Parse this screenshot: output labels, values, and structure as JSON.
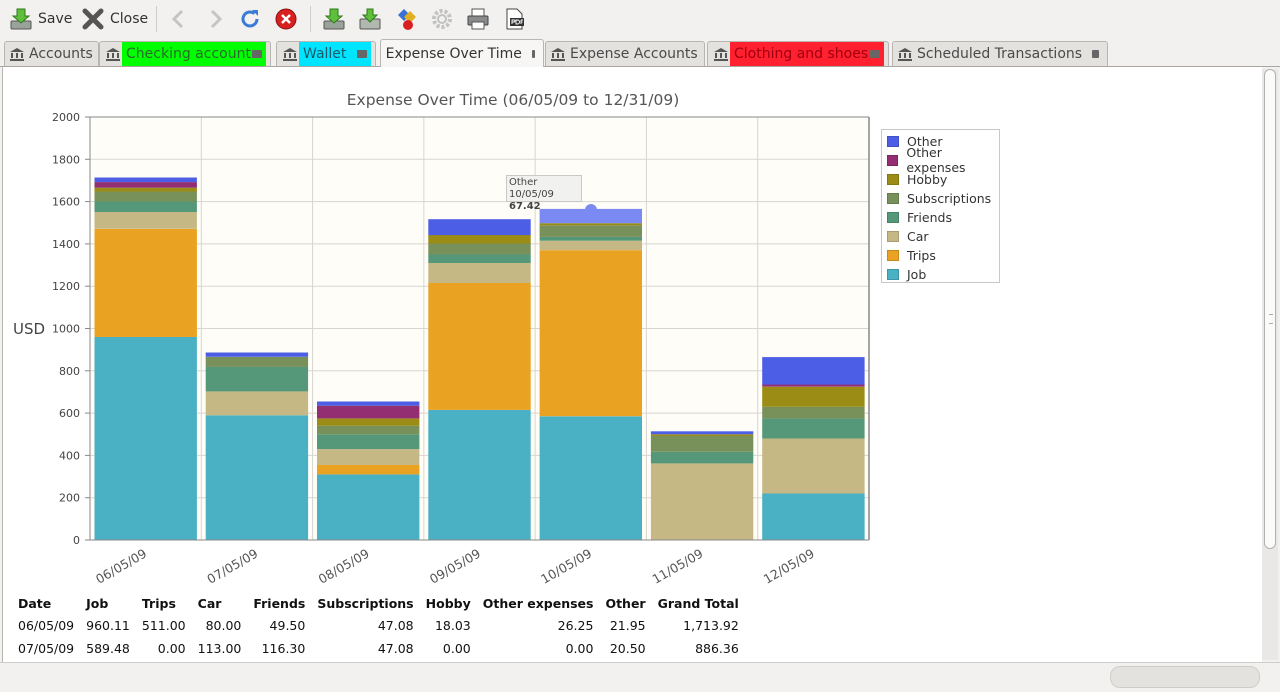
{
  "toolbar": {
    "save_label": "Save",
    "close_label": "Close",
    "icons": [
      "save-icon",
      "close-icon",
      "back-arrow-icon",
      "forward-arrow-icon",
      "refresh-icon",
      "stop-icon",
      "download-icon",
      "import-icon",
      "stock-quote-icon",
      "gear-icon",
      "print-icon",
      "pdf-icon"
    ]
  },
  "tabs": [
    {
      "label": "Accounts",
      "bg": "#e4e2df",
      "color": "#4a4a4a"
    },
    {
      "label": "Checking account",
      "bg": "#00ff00",
      "color": "#2a6a2a"
    },
    {
      "label": "Wallet",
      "bg": "#00e5ff",
      "color": "#1a5a6a"
    },
    {
      "label": "Expense Over Time",
      "bg": "#f7f6f5",
      "color": "#333333"
    },
    {
      "label": "Expense Accounts",
      "bg": "#e4e2df",
      "color": "#4a4a4a"
    },
    {
      "label": "Clothing and shoes",
      "bg": "#ff2030",
      "color": "#a00010"
    },
    {
      "label": "Scheduled Transactions",
      "bg": "#e4e2df",
      "color": "#4a4a4a"
    }
  ],
  "chart_data": {
    "type": "bar",
    "stacked": true,
    "title": "Expense Over Time (06/05/09 to 12/31/09)",
    "ylabel": "USD",
    "xlabel": "",
    "ylim": [
      0,
      2000
    ],
    "yticks": [
      0,
      200,
      400,
      600,
      800,
      1000,
      1200,
      1400,
      1600,
      1800,
      2000
    ],
    "grid": true,
    "legend": "right",
    "categories": [
      "06/05/09",
      "07/05/09",
      "08/05/09",
      "09/05/09",
      "10/05/09",
      "11/05/09",
      "12/05/09"
    ],
    "series": [
      {
        "name": "Job",
        "color": "#4ab0c4",
        "values": [
          960.11,
          589.48,
          310,
          615,
          585,
          0,
          220
        ]
      },
      {
        "name": "Trips",
        "color": "#eaa222",
        "values": [
          511.0,
          0.0,
          45,
          600,
          785,
          0,
          0
        ]
      },
      {
        "name": "Car",
        "color": "#c6b884",
        "values": [
          80.0,
          113.0,
          75,
          95,
          45,
          362,
          260
        ]
      },
      {
        "name": "Friends",
        "color": "#549879",
        "values": [
          49.5,
          116.3,
          70,
          40,
          18,
          55,
          95
        ]
      },
      {
        "name": "Subscriptions",
        "color": "#78905a",
        "values": [
          47.08,
          47.08,
          40,
          52,
          55,
          75,
          55
        ]
      },
      {
        "name": "Hobby",
        "color": "#9a8c14",
        "values": [
          18.03,
          0.0,
          35,
          40,
          10,
          8,
          95
        ]
      },
      {
        "name": "Other expenses",
        "color": "#932e73",
        "values": [
          26.25,
          0.0,
          60,
          0,
          0,
          0,
          10
        ]
      },
      {
        "name": "Other",
        "color": "#4d5ee6",
        "values": [
          21.95,
          20.5,
          20,
          75,
          67.42,
          14,
          130
        ]
      }
    ],
    "highlight": {
      "series": "Other",
      "category": "10/05/09",
      "color": "#7a8af2"
    }
  },
  "tooltip": {
    "line1": "Other 10/05/09",
    "line2": "67.42"
  },
  "table": {
    "headers": [
      "Date",
      "Job",
      "Trips",
      "Car",
      "Friends",
      "Subscriptions",
      "Hobby",
      "Other expenses",
      "Other",
      "Grand Total"
    ],
    "rows": [
      [
        "06/05/09",
        "960.11",
        "511.00",
        "80.00",
        "49.50",
        "47.08",
        "18.03",
        "26.25",
        "21.95",
        "1,713.92"
      ],
      [
        "07/05/09",
        "589.48",
        "0.00",
        "113.00",
        "116.30",
        "47.08",
        "0.00",
        "0.00",
        "20.50",
        "886.36"
      ]
    ]
  }
}
